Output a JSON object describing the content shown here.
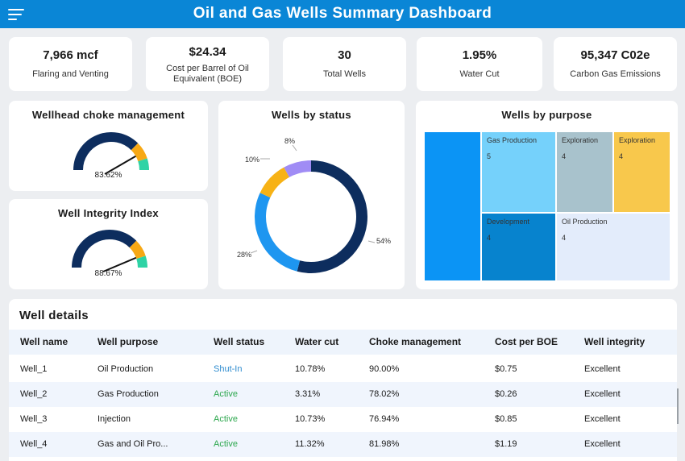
{
  "header": {
    "title": "Oil and Gas Wells Summary Dashboard",
    "menu_icon": "hamburger-menu-icon",
    "color": "#0a86d6"
  },
  "kpis": [
    {
      "value": "7,966 mcf",
      "label": "Flaring and Venting"
    },
    {
      "value": "$24.34",
      "label": "Cost per Barrel of Oil Equivalent (BOE)"
    },
    {
      "value": "30",
      "label": "Total Wells"
    },
    {
      "value": "1.95%",
      "label": "Water Cut"
    },
    {
      "value": "95,347 C02e",
      "label": "Carbon Gas Emissions"
    }
  ],
  "gauges": [
    {
      "title": "Wellhead choke management",
      "value_label": "83.62%",
      "value": 83.62
    },
    {
      "title": "Well Integrity Index",
      "value_label": "88.67%",
      "value": 88.67
    }
  ],
  "gauge_bands": [
    {
      "from": 0,
      "to": 75,
      "color": "#0d2d5e"
    },
    {
      "from": 75,
      "to": 90,
      "color": "#f7a814"
    },
    {
      "from": 90,
      "to": 100,
      "color": "#2ed3a5"
    }
  ],
  "status_chart": {
    "title": "Wells by status",
    "chart_data": {
      "type": "pie",
      "title": "Wells by status",
      "slices": [
        {
          "label": "54%",
          "value": 54,
          "color": "#0d2d5e"
        },
        {
          "label": "28%",
          "value": 28,
          "color": "#1e96f0"
        },
        {
          "label": "10%",
          "value": 10,
          "color": "#f7b215"
        },
        {
          "label": "8%",
          "value": 8,
          "color": "#a08cf5"
        }
      ]
    }
  },
  "purpose_chart": {
    "title": "Wells by purpose",
    "chart_data": {
      "type": "treemap",
      "title": "Wells by purpose",
      "items": [
        {
          "label": "",
          "value": "",
          "color": "#0b94f5"
        },
        {
          "label": "Gas Production",
          "value": "5",
          "color": "#75d1fb"
        },
        {
          "label": "Exploration",
          "value": "4",
          "color": "#a8c2cc"
        },
        {
          "label": "Exploration",
          "value": "4",
          "color": "#f8c84c"
        },
        {
          "label": "Development",
          "value": "4",
          "color": "#0783ce"
        },
        {
          "label": "Oil Production",
          "value": "4",
          "color": "#e3ecfb"
        }
      ]
    }
  },
  "table": {
    "title": "Well details",
    "columns": [
      "Well name",
      "Well purpose",
      "Well status",
      "Water cut",
      "Choke management",
      "Cost per BOE",
      "Well integrity"
    ],
    "rows": [
      [
        "Well_1",
        "Oil Production",
        "Shut-In",
        "10.78%",
        "90.00%",
        "$0.75",
        "Excellent"
      ],
      [
        "Well_2",
        "Gas Production",
        "Active",
        "3.31%",
        "78.02%",
        "$0.26",
        "Excellent"
      ],
      [
        "Well_3",
        "Injection",
        "Active",
        "10.73%",
        "76.94%",
        "$0.85",
        "Excellent"
      ],
      [
        "Well_4",
        "Gas and Oil Pro...",
        "Active",
        "11.32%",
        "81.98%",
        "$1.19",
        "Excellent"
      ]
    ]
  }
}
